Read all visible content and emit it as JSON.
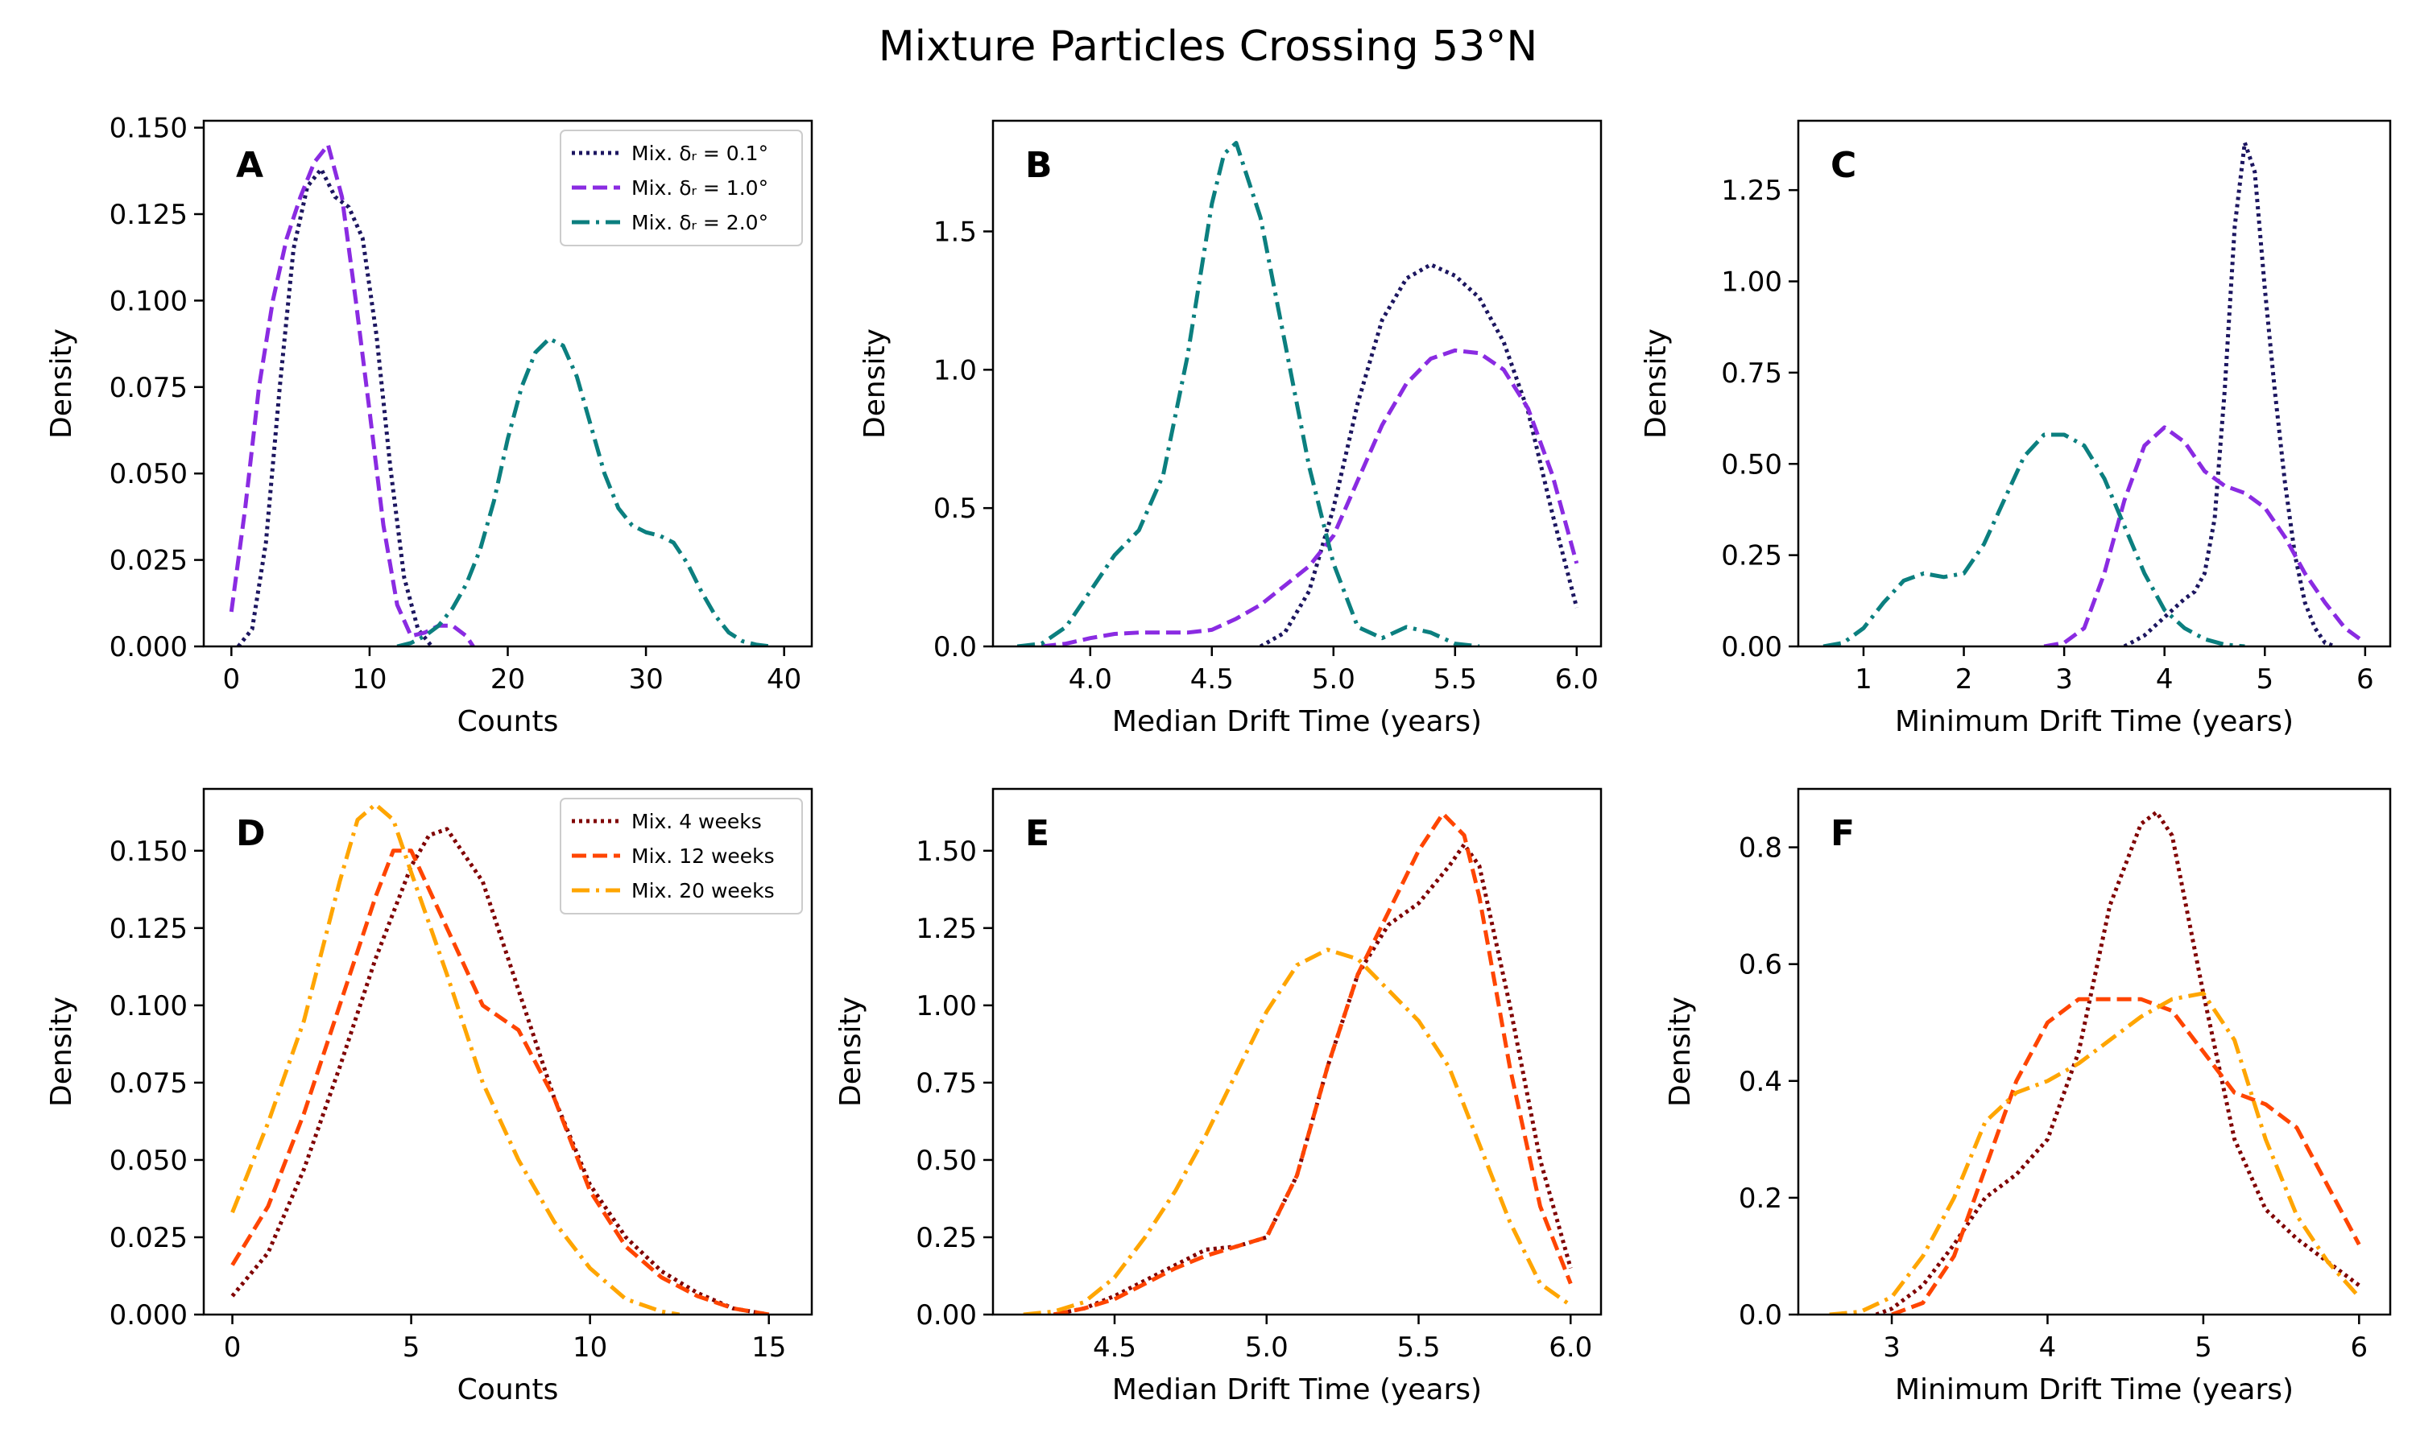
{
  "figure": {
    "title": "Mixture Particles Crossing 53°N"
  },
  "colors": {
    "navy": "#1c1660",
    "purple": "#8a2be2",
    "teal": "#0b7f7f",
    "maroon": "#800000",
    "orangered": "#ff4500",
    "orange": "#ffa500"
  },
  "chart_data": [
    {
      "id": "A",
      "type": "line",
      "panel_label": "A",
      "xlabel": "Counts",
      "ylabel": "Density",
      "xlim": [
        -2,
        42
      ],
      "ylim": [
        0,
        0.152
      ],
      "xticks": [
        0,
        10,
        20,
        30,
        40
      ],
      "xtick_labels": [
        "0",
        "10",
        "20",
        "30",
        "40"
      ],
      "yticks": [
        0,
        0.025,
        0.05,
        0.075,
        0.1,
        0.125,
        0.15
      ],
      "ytick_labels": [
        "0.000",
        "0.025",
        "0.050",
        "0.075",
        "0.100",
        "0.125",
        "0.150"
      ],
      "legend": {
        "position": "top-right"
      },
      "series": [
        {
          "name": "Mix. δᵣ = 0.1°",
          "style": "dotted",
          "color": "#1c1660",
          "x": [
            0.5,
            1.5,
            2.5,
            3.5,
            4.5,
            5.5,
            6.5,
            7.5,
            8.5,
            9.5,
            10.5,
            11.5,
            12.5,
            13.5,
            14.5
          ],
          "y": [
            0.0,
            0.005,
            0.03,
            0.075,
            0.115,
            0.133,
            0.138,
            0.13,
            0.127,
            0.118,
            0.09,
            0.052,
            0.02,
            0.005,
            0.0
          ]
        },
        {
          "name": "Mix. δᵣ = 1.0°",
          "style": "dashed",
          "color": "#8a2be2",
          "x": [
            0,
            1,
            2,
            3,
            4,
            5,
            6,
            7,
            8,
            9,
            10,
            11,
            12,
            13,
            14,
            15,
            16,
            17,
            17.5
          ],
          "y": [
            0.01,
            0.04,
            0.075,
            0.1,
            0.118,
            0.13,
            0.14,
            0.145,
            0.13,
            0.1,
            0.068,
            0.035,
            0.012,
            0.003,
            0.004,
            0.006,
            0.006,
            0.003,
            0.0
          ]
        },
        {
          "name": "Mix. δᵣ = 2.0°",
          "style": "dashdot",
          "color": "#0b7f7f",
          "x": [
            12,
            13,
            14,
            15,
            16,
            17,
            18,
            19,
            20,
            21,
            22,
            23,
            24,
            25,
            26,
            27,
            28,
            29,
            30,
            31,
            32,
            33,
            34,
            35,
            36,
            37,
            38,
            39
          ],
          "y": [
            0.0,
            0.001,
            0.003,
            0.006,
            0.011,
            0.018,
            0.028,
            0.042,
            0.06,
            0.075,
            0.085,
            0.089,
            0.087,
            0.078,
            0.064,
            0.05,
            0.04,
            0.035,
            0.033,
            0.032,
            0.03,
            0.024,
            0.016,
            0.009,
            0.004,
            0.0015,
            0.0005,
            0.0
          ]
        }
      ]
    },
    {
      "id": "B",
      "type": "line",
      "panel_label": "B",
      "xlabel": "Median Drift Time (years)",
      "ylabel": "Density",
      "xlim": [
        3.6,
        6.1
      ],
      "ylim": [
        0,
        1.9
      ],
      "xticks": [
        4.0,
        4.5,
        5.0,
        5.5,
        6.0
      ],
      "xtick_labels": [
        "4.0",
        "4.5",
        "5.0",
        "5.5",
        "6.0"
      ],
      "yticks": [
        0,
        0.5,
        1.0,
        1.5
      ],
      "ytick_labels": [
        "0.0",
        "0.5",
        "1.0",
        "1.5"
      ],
      "series": [
        {
          "name": "Mix. δᵣ = 0.1°",
          "style": "dotted",
          "color": "#1c1660",
          "x": [
            4.7,
            4.8,
            4.9,
            5.0,
            5.1,
            5.2,
            5.3,
            5.4,
            5.5,
            5.6,
            5.7,
            5.8,
            5.9,
            6.0
          ],
          "y": [
            0.0,
            0.05,
            0.2,
            0.5,
            0.88,
            1.18,
            1.33,
            1.38,
            1.34,
            1.26,
            1.1,
            0.85,
            0.48,
            0.14
          ]
        },
        {
          "name": "Mix. δᵣ = 1.0°",
          "style": "dashed",
          "color": "#8a2be2",
          "x": [
            3.8,
            3.9,
            4.0,
            4.1,
            4.2,
            4.3,
            4.4,
            4.5,
            4.6,
            4.7,
            4.8,
            4.9,
            5.0,
            5.1,
            5.2,
            5.3,
            5.4,
            5.5,
            5.6,
            5.7,
            5.8,
            5.9,
            6.0
          ],
          "y": [
            0.0,
            0.01,
            0.03,
            0.045,
            0.05,
            0.05,
            0.05,
            0.06,
            0.1,
            0.15,
            0.22,
            0.29,
            0.4,
            0.6,
            0.8,
            0.95,
            1.04,
            1.07,
            1.06,
            1.0,
            0.86,
            0.62,
            0.3
          ]
        },
        {
          "name": "Mix. δᵣ = 2.0°",
          "style": "dashdot",
          "color": "#0b7f7f",
          "x": [
            3.7,
            3.8,
            3.9,
            4.0,
            4.1,
            4.2,
            4.3,
            4.4,
            4.5,
            4.55,
            4.6,
            4.7,
            4.8,
            4.9,
            5.0,
            5.1,
            5.2,
            5.3,
            5.4,
            5.5,
            5.6
          ],
          "y": [
            0.0,
            0.01,
            0.07,
            0.2,
            0.33,
            0.42,
            0.62,
            1.05,
            1.6,
            1.78,
            1.82,
            1.55,
            1.1,
            0.65,
            0.3,
            0.07,
            0.03,
            0.07,
            0.05,
            0.01,
            0.0
          ]
        }
      ]
    },
    {
      "id": "C",
      "type": "line",
      "panel_label": "C",
      "xlabel": "Minimum Drift Time (years)",
      "ylabel": "Density",
      "xlim": [
        0.35,
        6.25
      ],
      "ylim": [
        0,
        1.44
      ],
      "xticks": [
        1,
        2,
        3,
        4,
        5,
        6
      ],
      "xtick_labels": [
        "1",
        "2",
        "3",
        "4",
        "5",
        "6"
      ],
      "yticks": [
        0,
        0.25,
        0.5,
        0.75,
        1.0,
        1.25
      ],
      "ytick_labels": [
        "0.00",
        "0.25",
        "0.50",
        "0.75",
        "1.00",
        "1.25"
      ],
      "series": [
        {
          "name": "Mix. δᵣ = 0.1°",
          "style": "dotted",
          "color": "#1c1660",
          "x": [
            3.6,
            3.8,
            4.0,
            4.2,
            4.3,
            4.4,
            4.5,
            4.6,
            4.7,
            4.8,
            4.9,
            5.0,
            5.1,
            5.2,
            5.3,
            5.4,
            5.5,
            5.6,
            5.7
          ],
          "y": [
            0.0,
            0.03,
            0.08,
            0.13,
            0.15,
            0.2,
            0.35,
            0.7,
            1.15,
            1.38,
            1.3,
            0.98,
            0.7,
            0.45,
            0.25,
            0.12,
            0.05,
            0.01,
            0.0
          ]
        },
        {
          "name": "Mix. δᵣ = 1.0°",
          "style": "dashed",
          "color": "#8a2be2",
          "x": [
            2.8,
            3.0,
            3.2,
            3.4,
            3.6,
            3.8,
            4.0,
            4.2,
            4.4,
            4.6,
            4.8,
            5.0,
            5.2,
            5.4,
            5.6,
            5.8,
            5.95
          ],
          "y": [
            0.0,
            0.01,
            0.05,
            0.2,
            0.4,
            0.55,
            0.6,
            0.56,
            0.48,
            0.44,
            0.42,
            0.38,
            0.3,
            0.2,
            0.12,
            0.05,
            0.02
          ]
        },
        {
          "name": "Mix. δᵣ = 2.0°",
          "style": "dashdot",
          "color": "#0b7f7f",
          "x": [
            0.6,
            0.8,
            1.0,
            1.2,
            1.4,
            1.6,
            1.8,
            2.0,
            2.2,
            2.4,
            2.6,
            2.8,
            3.0,
            3.2,
            3.4,
            3.6,
            3.8,
            4.0,
            4.2,
            4.4,
            4.6,
            4.8
          ],
          "y": [
            0.0,
            0.01,
            0.05,
            0.12,
            0.18,
            0.2,
            0.19,
            0.2,
            0.28,
            0.4,
            0.52,
            0.58,
            0.58,
            0.55,
            0.46,
            0.33,
            0.2,
            0.1,
            0.05,
            0.02,
            0.005,
            0.0
          ]
        }
      ]
    },
    {
      "id": "D",
      "type": "line",
      "panel_label": "D",
      "xlabel": "Counts",
      "ylabel": "Density",
      "xlim": [
        -0.8,
        16.2
      ],
      "ylim": [
        0,
        0.17
      ],
      "xticks": [
        0,
        5,
        10,
        15
      ],
      "xtick_labels": [
        "0",
        "5",
        "10",
        "15"
      ],
      "yticks": [
        0,
        0.025,
        0.05,
        0.075,
        0.1,
        0.125,
        0.15
      ],
      "ytick_labels": [
        "0.000",
        "0.025",
        "0.050",
        "0.075",
        "0.100",
        "0.125",
        "0.150"
      ],
      "legend": {
        "position": "top-right"
      },
      "series": [
        {
          "name": "Mix. 4 weeks",
          "style": "dotted",
          "color": "#800000",
          "x": [
            0,
            1,
            2,
            3,
            4,
            5,
            5.5,
            6,
            7,
            8,
            9,
            10,
            11,
            12,
            13,
            14,
            15
          ],
          "y": [
            0.006,
            0.02,
            0.047,
            0.08,
            0.115,
            0.145,
            0.155,
            0.157,
            0.14,
            0.105,
            0.07,
            0.042,
            0.025,
            0.014,
            0.007,
            0.002,
            0.0
          ]
        },
        {
          "name": "Mix. 12 weeks",
          "style": "dashed",
          "color": "#ff4500",
          "x": [
            0,
            1,
            2,
            3,
            4,
            4.5,
            5,
            6,
            7,
            8,
            9,
            10,
            11,
            12,
            13,
            14,
            15
          ],
          "y": [
            0.016,
            0.035,
            0.065,
            0.1,
            0.135,
            0.15,
            0.15,
            0.125,
            0.1,
            0.092,
            0.07,
            0.04,
            0.022,
            0.012,
            0.006,
            0.002,
            0.0
          ]
        },
        {
          "name": "Mix. 20 weeks",
          "style": "dashdot",
          "color": "#ffa500",
          "x": [
            0,
            1,
            2,
            3,
            3.5,
            4,
            4.5,
            5,
            6,
            7,
            8,
            9,
            10,
            11,
            12,
            12.5
          ],
          "y": [
            0.033,
            0.062,
            0.095,
            0.14,
            0.16,
            0.165,
            0.16,
            0.143,
            0.11,
            0.075,
            0.05,
            0.03,
            0.015,
            0.005,
            0.001,
            0.0
          ]
        }
      ]
    },
    {
      "id": "E",
      "type": "line",
      "panel_label": "E",
      "xlabel": "Median Drift Time (years)",
      "ylabel": "Density",
      "xlim": [
        4.1,
        6.1
      ],
      "ylim": [
        0,
        1.7
      ],
      "xticks": [
        4.5,
        5.0,
        5.5,
        6.0
      ],
      "xtick_labels": [
        "4.5",
        "5.0",
        "5.5",
        "6.0"
      ],
      "yticks": [
        0,
        0.25,
        0.5,
        0.75,
        1.0,
        1.25,
        1.5
      ],
      "ytick_labels": [
        "0.00",
        "0.25",
        "0.50",
        "0.75",
        "1.00",
        "1.25",
        "1.50"
      ],
      "series": [
        {
          "name": "Mix. 4 weeks",
          "style": "dotted",
          "color": "#800000",
          "x": [
            4.3,
            4.4,
            4.5,
            4.6,
            4.7,
            4.8,
            4.9,
            5.0,
            5.1,
            5.2,
            5.3,
            5.4,
            5.5,
            5.6,
            5.65,
            5.7,
            5.8,
            5.9,
            6.0
          ],
          "y": [
            0.0,
            0.02,
            0.06,
            0.11,
            0.16,
            0.21,
            0.22,
            0.25,
            0.45,
            0.8,
            1.1,
            1.26,
            1.33,
            1.45,
            1.52,
            1.45,
            1.0,
            0.5,
            0.15
          ]
        },
        {
          "name": "Mix. 12 weeks",
          "style": "dashed",
          "color": "#ff4500",
          "x": [
            4.3,
            4.4,
            4.5,
            4.6,
            4.7,
            4.8,
            4.9,
            5.0,
            5.1,
            5.2,
            5.3,
            5.4,
            5.5,
            5.58,
            5.65,
            5.7,
            5.8,
            5.9,
            6.0
          ],
          "y": [
            0.0,
            0.02,
            0.05,
            0.1,
            0.15,
            0.19,
            0.22,
            0.25,
            0.45,
            0.8,
            1.1,
            1.3,
            1.5,
            1.62,
            1.55,
            1.35,
            0.8,
            0.35,
            0.1
          ]
        },
        {
          "name": "Mix. 20 weeks",
          "style": "dashdot",
          "color": "#ffa500",
          "x": [
            4.2,
            4.3,
            4.4,
            4.5,
            4.6,
            4.7,
            4.8,
            4.9,
            5.0,
            5.1,
            5.2,
            5.3,
            5.4,
            5.5,
            5.6,
            5.7,
            5.8,
            5.9,
            6.0
          ],
          "y": [
            0.0,
            0.01,
            0.04,
            0.12,
            0.25,
            0.4,
            0.58,
            0.78,
            0.98,
            1.13,
            1.18,
            1.15,
            1.05,
            0.95,
            0.8,
            0.55,
            0.3,
            0.1,
            0.03
          ]
        }
      ]
    },
    {
      "id": "F",
      "type": "line",
      "panel_label": "F",
      "xlabel": "Minimum Drift Time (years)",
      "ylabel": "Density",
      "xlim": [
        2.4,
        6.2
      ],
      "ylim": [
        0,
        0.9
      ],
      "xticks": [
        3,
        4,
        5,
        6
      ],
      "xtick_labels": [
        "3",
        "4",
        "5",
        "6"
      ],
      "yticks": [
        0,
        0.2,
        0.4,
        0.6,
        0.8
      ],
      "ytick_labels": [
        "0.0",
        "0.2",
        "0.4",
        "0.6",
        "0.8"
      ],
      "series": [
        {
          "name": "Mix. 4 weeks",
          "style": "dotted",
          "color": "#800000",
          "x": [
            2.9,
            3.0,
            3.2,
            3.4,
            3.6,
            3.8,
            4.0,
            4.2,
            4.4,
            4.6,
            4.7,
            4.8,
            5.0,
            5.2,
            5.4,
            5.6,
            5.8,
            6.0
          ],
          "y": [
            0.0,
            0.01,
            0.05,
            0.12,
            0.2,
            0.24,
            0.3,
            0.45,
            0.7,
            0.84,
            0.86,
            0.82,
            0.55,
            0.3,
            0.18,
            0.13,
            0.09,
            0.05
          ]
        },
        {
          "name": "Mix. 12 weeks",
          "style": "dashed",
          "color": "#ff4500",
          "x": [
            3.0,
            3.2,
            3.4,
            3.6,
            3.8,
            4.0,
            4.2,
            4.4,
            4.6,
            4.8,
            5.0,
            5.2,
            5.4,
            5.6,
            5.8,
            6.0
          ],
          "y": [
            0.0,
            0.02,
            0.1,
            0.25,
            0.4,
            0.5,
            0.54,
            0.54,
            0.54,
            0.52,
            0.45,
            0.38,
            0.36,
            0.32,
            0.22,
            0.12
          ]
        },
        {
          "name": "Mix. 20 weeks",
          "style": "dashdot",
          "color": "#ffa500",
          "x": [
            2.6,
            2.8,
            3.0,
            3.2,
            3.4,
            3.6,
            3.8,
            4.0,
            4.2,
            4.4,
            4.6,
            4.8,
            5.0,
            5.2,
            5.4,
            5.6,
            5.8,
            6.0
          ],
          "y": [
            0.0,
            0.005,
            0.03,
            0.1,
            0.2,
            0.33,
            0.38,
            0.4,
            0.43,
            0.47,
            0.51,
            0.54,
            0.55,
            0.47,
            0.3,
            0.17,
            0.09,
            0.03
          ]
        }
      ]
    }
  ]
}
